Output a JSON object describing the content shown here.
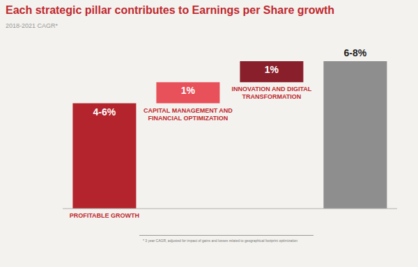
{
  "chart_data": {
    "type": "waterfall",
    "title": "Each strategic pillar contributes to Earnings per Share growth",
    "subtitle": "2018-2021 CAGR*",
    "categories": [
      "PROFITABLE GROWTH",
      "CAPITAL MANAGEMENT AND FINANCIAL OPTIMIZATION",
      "INNOVATION AND DIGITAL TRANSFORMATION",
      null
    ],
    "values": [
      5,
      1,
      1,
      7
    ],
    "value_labels": [
      "4-6%",
      "1%",
      "1%",
      "6-8%"
    ],
    "colors": [
      "#b3242c",
      "#e8505a",
      "#8a1f2c",
      "#8e8e8e"
    ],
    "data_labels": true,
    "tick_labels": false,
    "annotations": [
      "* 3 year CAGR, adjusted for impact of gains and losses related to geographical footprint optimization"
    ]
  }
}
